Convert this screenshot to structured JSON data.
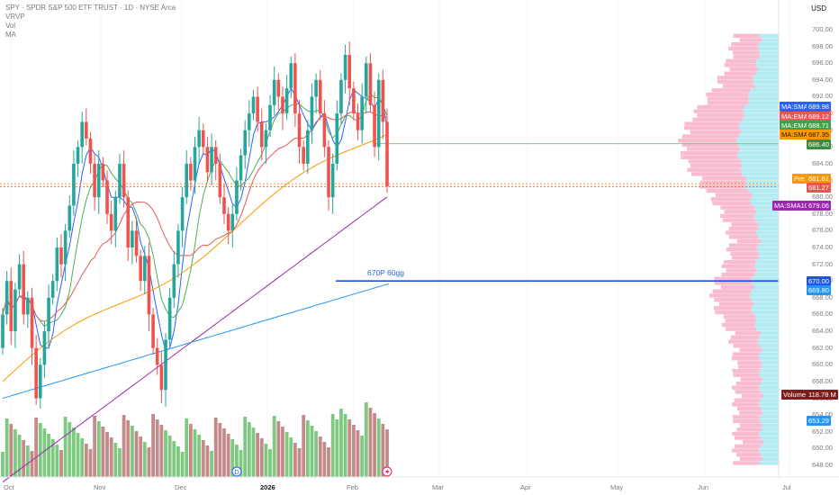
{
  "header": {
    "symbol_line": "SPY · SPDR S&P 500 ETF TRUST · 1D · NYSE Arca",
    "indicators": [
      "VRVP",
      "Vol",
      "MA"
    ]
  },
  "currency": "USD",
  "annotation": "670P 60gg",
  "price_axis_labels": [
    "700.00",
    "698.00",
    "696.00",
    "694.00",
    "692.00",
    "690.00",
    "688.00",
    "686.00",
    "684.00",
    "682.00",
    "680.00",
    "678.00",
    "676.00",
    "674.00",
    "672.00",
    "670.00",
    "668.00",
    "666.00",
    "664.00",
    "662.00",
    "660.00",
    "658.00",
    "656.00",
    "654.00",
    "652.00",
    "650.00",
    "648.00"
  ],
  "time_axis_labels": [
    "Oct",
    "Nov",
    "Dec",
    "2026",
    "Feb",
    "Mar",
    "Apr",
    "May",
    "Jun",
    "Jul"
  ],
  "tags": {
    "sma5": {
      "label": "MA:SMA5",
      "value": "689.98"
    },
    "ema21": {
      "label": "MA:EMA21",
      "value": "689.12"
    },
    "ema9": {
      "label": "MA:EMA9",
      "value": "688.71"
    },
    "sma50": {
      "label": "MA:SMA50",
      "value": "687.35"
    },
    "green_level": {
      "value": "686.40"
    },
    "pre": {
      "label": "Pre",
      "value": "681.61"
    },
    "last": {
      "value": "681.27"
    },
    "sma100": {
      "label": "MA:SMA100",
      "value": "679.06"
    },
    "level_670": {
      "value": "670.00"
    },
    "sma200": {
      "value": "669.80"
    },
    "volume": {
      "label": "Volume",
      "value": "118.78 M"
    },
    "bottom": {
      "value": "653.29"
    }
  },
  "colors": {
    "up": "#26a69a",
    "down": "#ef5350",
    "vol_up": "#7cc97f",
    "vol_down": "#c48a8a",
    "sma5": "#2962ff",
    "ema21": "#e05a5a",
    "ema9": "#4caf50",
    "sma50": "#ff9800",
    "sma100": "#9c27b0",
    "sma200": "#2196f3",
    "vp_up": "#b2ebf2",
    "vp_down": "#f8bbd0"
  },
  "chart_data": {
    "type": "candlestick",
    "symbol": "SPY",
    "interval": "1D",
    "ylim": [
      647,
      701
    ],
    "last_price": 681.27,
    "premarket_price": 681.61,
    "horizontal_levels": [
      686.4,
      670.0
    ],
    "moving_averages": {
      "SMA5": 689.98,
      "EMA21": 689.12,
      "EMA9": 688.71,
      "SMA50": 687.35,
      "SMA100": 679.06,
      "SMA200": 669.8
    },
    "last_volume": "118.78 M"
  }
}
